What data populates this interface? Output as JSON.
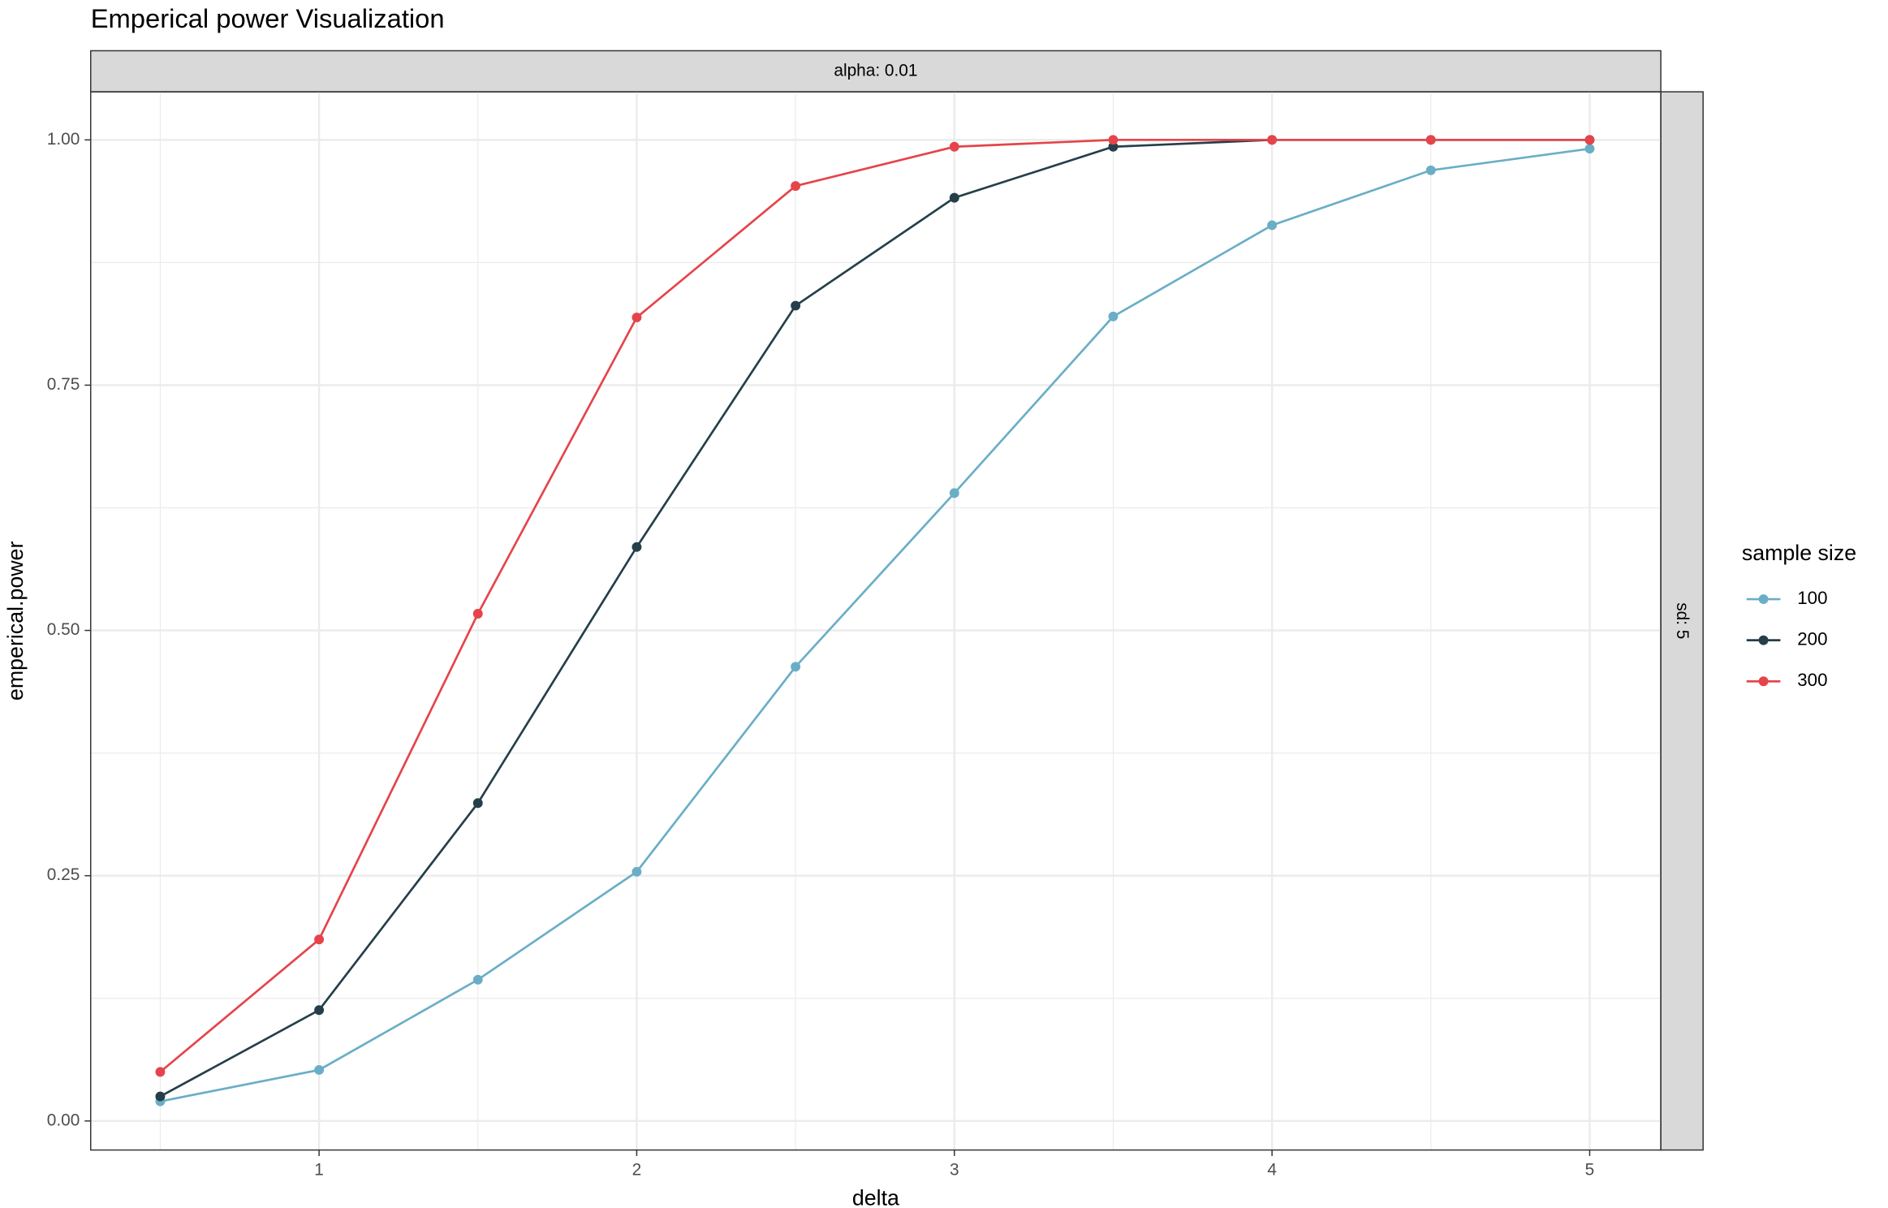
{
  "chart_data": {
    "type": "line",
    "title": "Emperical power Visualization",
    "facet_top": "alpha: 0.01",
    "facet_right": "sd: 5",
    "xlabel": "delta",
    "ylabel": "emperical.power",
    "legend_title": "sample size",
    "legend_position": "right",
    "grid": true,
    "x": [
      0.5,
      1,
      1.5,
      2,
      2.5,
      3,
      3.5,
      4,
      4.5,
      5
    ],
    "series": [
      {
        "name": "100",
        "color": "#6aaec6",
        "values": [
          0.02,
          0.052,
          0.144,
          0.254,
          0.463,
          0.64,
          0.82,
          0.913,
          0.969,
          0.991
        ]
      },
      {
        "name": "200",
        "color": "#253f4a",
        "values": [
          0.025,
          0.113,
          0.324,
          0.585,
          0.831,
          0.941,
          0.993,
          1.0,
          1.0,
          1.0
        ]
      },
      {
        "name": "300",
        "color": "#e5444a",
        "values": [
          0.05,
          0.185,
          0.517,
          0.819,
          0.953,
          0.993,
          1.0,
          1.0,
          1.0,
          1.0
        ]
      }
    ],
    "xlim": [
      0.281,
      5.224
    ],
    "ylim": [
      -0.0296,
      1.049
    ],
    "xticks": [
      1,
      2,
      3,
      4,
      5
    ],
    "xminor": [
      0.5,
      1.5,
      2.5,
      3.5,
      4.5
    ],
    "yticks": [
      {
        "value": 0,
        "label": "0.00"
      },
      {
        "value": 0.25,
        "label": "0.25"
      },
      {
        "value": 0.5,
        "label": "0.50"
      },
      {
        "value": 0.75,
        "label": "0.75"
      },
      {
        "value": 1,
        "label": "1.00"
      }
    ],
    "yminor": [
      0.125,
      0.375,
      0.625,
      0.875
    ]
  }
}
